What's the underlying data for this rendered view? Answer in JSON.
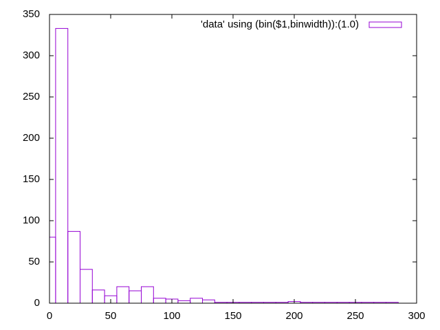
{
  "chart_data": {
    "type": "histogram",
    "bins": [
      -5,
      5,
      15,
      25,
      35,
      45,
      55,
      65,
      75,
      85,
      95,
      105,
      115,
      125,
      135,
      145,
      155,
      165,
      175,
      185,
      195,
      205,
      215,
      225,
      235,
      245,
      255,
      265,
      275,
      285
    ],
    "series": [
      {
        "name": "'data' using (bin($1,binwidth)):(1.0)",
        "color": "#9400d3",
        "values": [
          80,
          333,
          87,
          41,
          16,
          9,
          20,
          15,
          20,
          6,
          5,
          3,
          6,
          4,
          1,
          1,
          1,
          1,
          1,
          1,
          2,
          1,
          1,
          1,
          1,
          1,
          1,
          1,
          1
        ]
      }
    ],
    "xlim": [
      0,
      300
    ],
    "xticks": [
      0,
      50,
      100,
      150,
      200,
      250,
      300
    ],
    "ylim": [
      0,
      350
    ],
    "yticks": [
      0,
      50,
      100,
      150,
      200,
      250,
      300,
      350
    ],
    "legend": "top-right"
  }
}
